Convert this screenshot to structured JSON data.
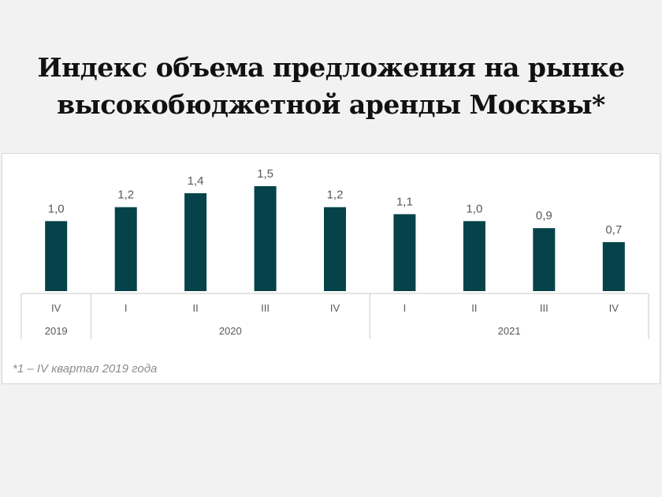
{
  "title_lines": [
    "Индекс объема предложения на рынке",
    "высокобюджетной аренды Москвы*"
  ],
  "footnote": "*1 – IV квартал 2019 года",
  "colors": {
    "background": "#f2f2f2",
    "panel": "#ffffff",
    "bar": "#06424a",
    "axis_line": "#c8c8c8",
    "label": "#595959"
  },
  "chart_data": {
    "type": "bar",
    "categories": [
      "IV",
      "I",
      "II",
      "III",
      "IV",
      "I",
      "II",
      "III",
      "IV"
    ],
    "groups": [
      {
        "label": "2019",
        "count": 1
      },
      {
        "label": "2020",
        "count": 4
      },
      {
        "label": "2021",
        "count": 4
      }
    ],
    "values": [
      1.0,
      1.2,
      1.4,
      1.5,
      1.2,
      1.1,
      1.0,
      0.9,
      0.7
    ],
    "value_labels": [
      "1,0",
      "1,2",
      "1,4",
      "1,5",
      "1,2",
      "1,1",
      "1,0",
      "0,9",
      "0,7"
    ],
    "ylim": [
      0,
      1.5
    ],
    "grid": false,
    "legend": "none"
  }
}
